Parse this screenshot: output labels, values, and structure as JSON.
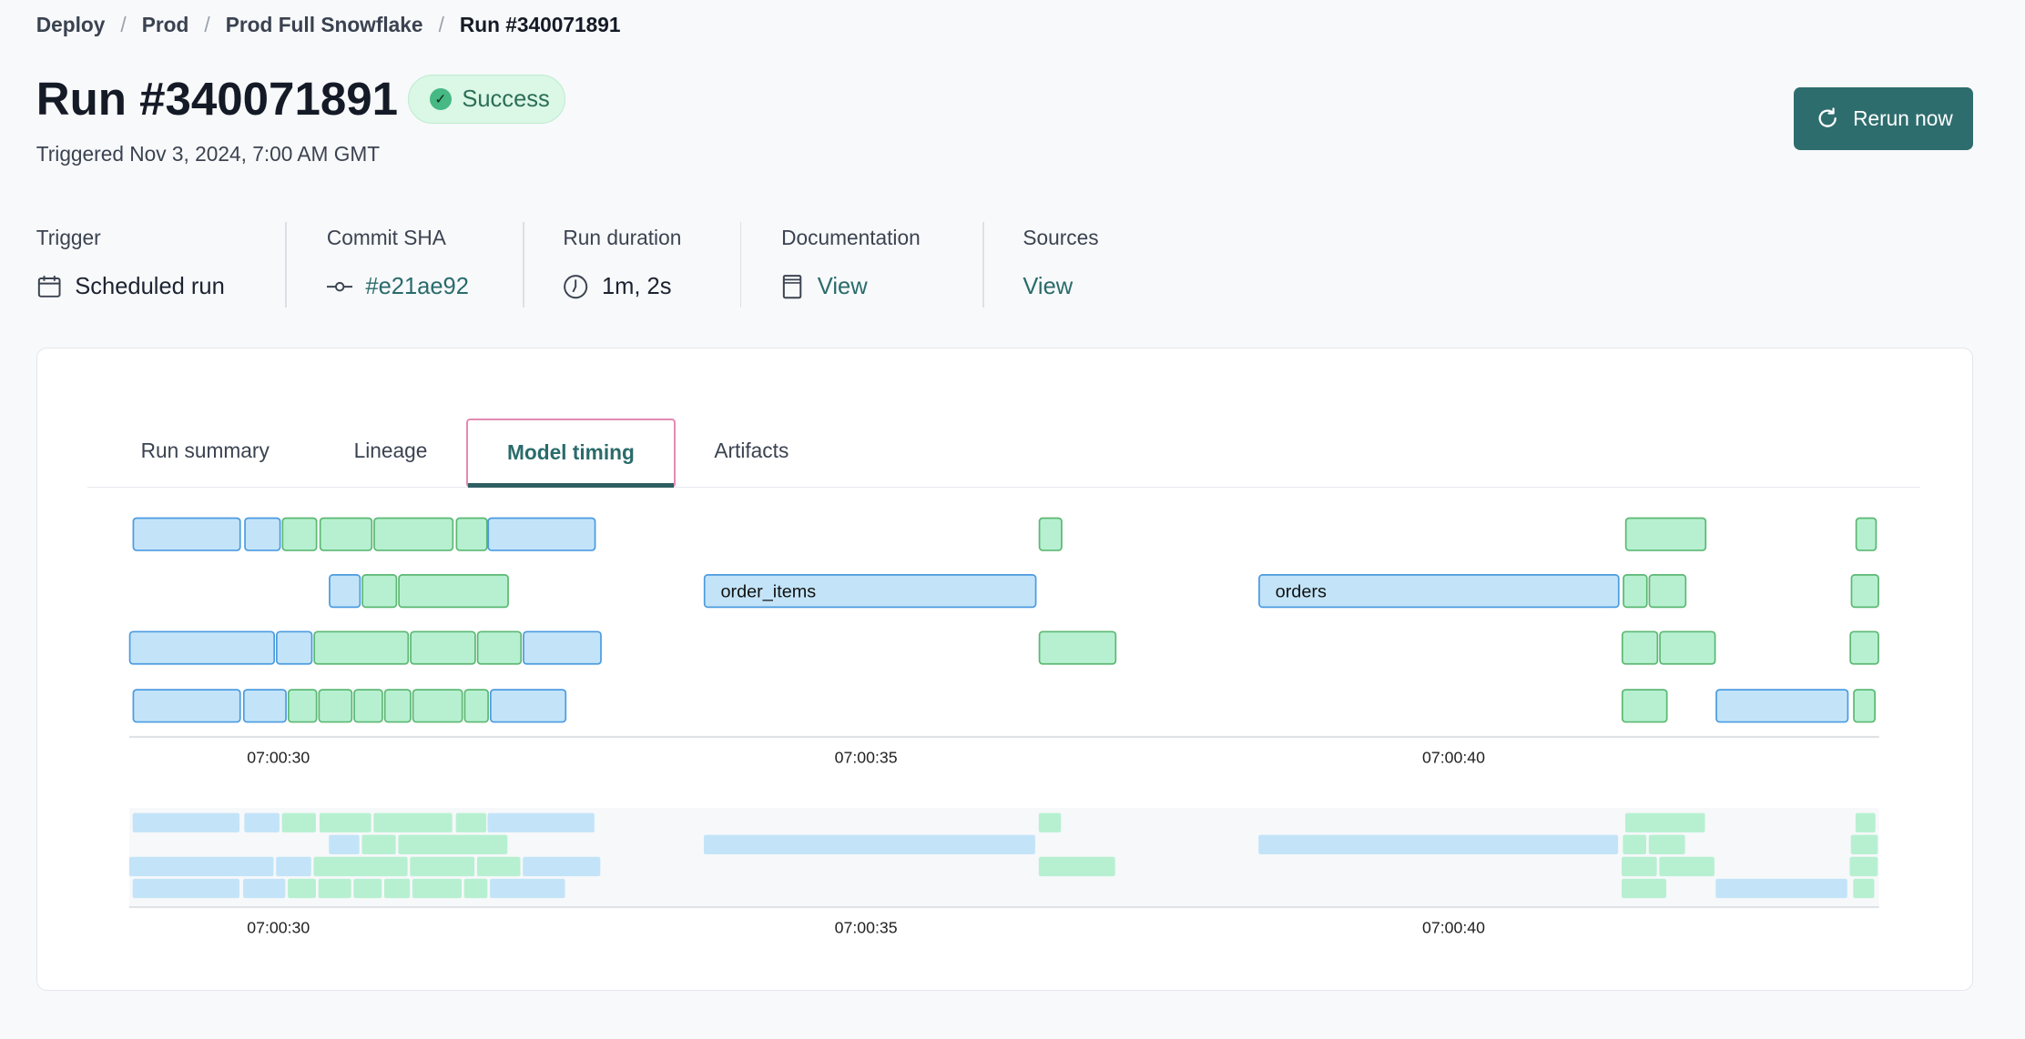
{
  "breadcrumb": [
    "Deploy",
    "Prod",
    "Prod Full Snowflake",
    "Run #340071891"
  ],
  "header": {
    "title": "Run #340071891",
    "status": "Success",
    "triggered": "Triggered Nov 3, 2024, 7:00 AM GMT",
    "rerun_label": "Rerun now"
  },
  "meta": [
    {
      "label": "Trigger",
      "value": "Scheduled run",
      "icon": "calendar-icon"
    },
    {
      "label": "Commit SHA",
      "value": "#e21ae92",
      "icon": "commit-icon"
    },
    {
      "label": "Run duration",
      "value": "1m, 2s",
      "icon": "clock-icon"
    },
    {
      "label": "Documentation",
      "value": "View",
      "icon": "book-icon"
    },
    {
      "label": "Sources",
      "value": "View"
    }
  ],
  "tabs": [
    {
      "label": "Run summary"
    },
    {
      "label": "Lineage"
    },
    {
      "label": "Model timing",
      "active": true
    },
    {
      "label": "Artifacts"
    }
  ],
  "colors": {
    "accent": "#2e6d6e",
    "blue_fill": "#c3e4f8",
    "blue_stroke": "#4b9be0",
    "green_fill": "#b7f0d1",
    "green_stroke": "#5bb873"
  },
  "chart_data": {
    "type": "gantt",
    "x_unit": "seconds after 07:00:00",
    "xlim": [
      28.73,
      43.62
    ],
    "ticks": [
      {
        "t": 30,
        "label": "07:00:30"
      },
      {
        "t": 35,
        "label": "07:00:35"
      },
      {
        "t": 40,
        "label": "07:00:40"
      }
    ],
    "rows": [
      [
        {
          "start": 28.76,
          "end": 29.68,
          "kind": "blue"
        },
        {
          "start": 29.71,
          "end": 30.02,
          "kind": "blue"
        },
        {
          "start": 30.03,
          "end": 30.33,
          "kind": "green"
        },
        {
          "start": 30.35,
          "end": 30.8,
          "kind": "green"
        },
        {
          "start": 30.81,
          "end": 31.49,
          "kind": "green"
        },
        {
          "start": 31.51,
          "end": 31.78,
          "kind": "green"
        },
        {
          "start": 31.78,
          "end": 32.7,
          "kind": "blue"
        },
        {
          "start": 36.47,
          "end": 36.67,
          "kind": "green"
        },
        {
          "start": 41.46,
          "end": 42.15,
          "kind": "green"
        },
        {
          "start": 43.42,
          "end": 43.6,
          "kind": "green"
        }
      ],
      [
        {
          "start": 30.43,
          "end": 30.7,
          "kind": "blue"
        },
        {
          "start": 30.71,
          "end": 31.01,
          "kind": "green"
        },
        {
          "start": 31.02,
          "end": 31.96,
          "kind": "green"
        },
        {
          "start": 33.62,
          "end": 36.45,
          "kind": "blue",
          "label": "order_items"
        },
        {
          "start": 38.34,
          "end": 41.41,
          "kind": "blue",
          "label": "orders"
        },
        {
          "start": 41.44,
          "end": 41.65,
          "kind": "green"
        },
        {
          "start": 41.66,
          "end": 41.98,
          "kind": "green"
        },
        {
          "start": 43.38,
          "end": 43.62,
          "kind": "green"
        }
      ],
      [
        {
          "start": 28.73,
          "end": 29.97,
          "kind": "blue"
        },
        {
          "start": 29.98,
          "end": 30.29,
          "kind": "blue"
        },
        {
          "start": 30.3,
          "end": 31.11,
          "kind": "green"
        },
        {
          "start": 31.12,
          "end": 31.68,
          "kind": "green"
        },
        {
          "start": 31.69,
          "end": 32.07,
          "kind": "green"
        },
        {
          "start": 32.08,
          "end": 32.75,
          "kind": "blue"
        },
        {
          "start": 36.47,
          "end": 37.13,
          "kind": "green"
        },
        {
          "start": 41.43,
          "end": 41.74,
          "kind": "green"
        },
        {
          "start": 41.75,
          "end": 42.23,
          "kind": "green"
        },
        {
          "start": 43.37,
          "end": 43.62,
          "kind": "green"
        }
      ],
      [
        {
          "start": 28.76,
          "end": 29.68,
          "kind": "blue"
        },
        {
          "start": 29.7,
          "end": 30.07,
          "kind": "blue"
        },
        {
          "start": 30.08,
          "end": 30.33,
          "kind": "green"
        },
        {
          "start": 30.34,
          "end": 30.63,
          "kind": "green"
        },
        {
          "start": 30.64,
          "end": 30.89,
          "kind": "green"
        },
        {
          "start": 30.9,
          "end": 31.13,
          "kind": "green"
        },
        {
          "start": 31.14,
          "end": 31.57,
          "kind": "green"
        },
        {
          "start": 31.58,
          "end": 31.79,
          "kind": "green"
        },
        {
          "start": 31.8,
          "end": 32.45,
          "kind": "blue"
        },
        {
          "start": 41.43,
          "end": 41.82,
          "kind": "green"
        },
        {
          "start": 42.23,
          "end": 43.36,
          "kind": "blue"
        },
        {
          "start": 43.4,
          "end": 43.59,
          "kind": "green"
        }
      ]
    ]
  }
}
